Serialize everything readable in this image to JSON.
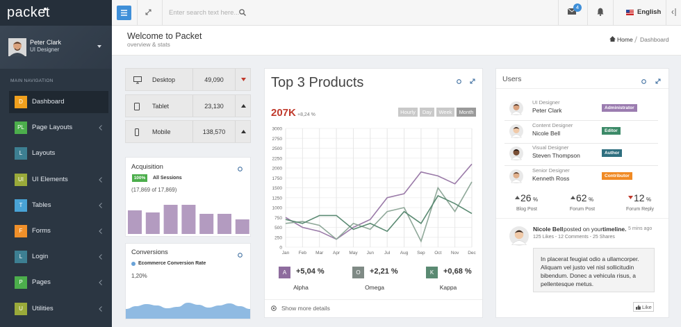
{
  "brand": {
    "logo": "packet"
  },
  "user": {
    "name": "Peter Clark",
    "role": "UI Designer"
  },
  "nav": {
    "heading": "MAIN NAVIGATION",
    "items": [
      {
        "badge": "D",
        "label": "Dashboard",
        "color": "#f0a01e",
        "has_submenu": false
      },
      {
        "badge": "PL",
        "label": "Page Layouts",
        "color": "#4cae4c",
        "has_submenu": true
      },
      {
        "badge": "L",
        "label": "Layouts",
        "color": "#3d7f92",
        "has_submenu": false
      },
      {
        "badge": "UI",
        "label": "UI Elements",
        "color": "#9aaa3a",
        "has_submenu": true
      },
      {
        "badge": "T",
        "label": "Tables",
        "color": "#49a3d6",
        "has_submenu": true
      },
      {
        "badge": "F",
        "label": "Forms",
        "color": "#f0902a",
        "has_submenu": true
      },
      {
        "badge": "L",
        "label": "Login",
        "color": "#3d7f92",
        "has_submenu": true
      },
      {
        "badge": "P",
        "label": "Pages",
        "color": "#4cae4c",
        "has_submenu": true
      },
      {
        "badge": "U",
        "label": "Utilities",
        "color": "#9aaa3a",
        "has_submenu": true
      }
    ]
  },
  "topbar": {
    "search_placeholder": "Enter search text here...",
    "mail_count": "4",
    "language": "English"
  },
  "page_header": {
    "title": "Welcome to Packet",
    "subtitle": "overview & stats",
    "breadcrumb": [
      "Home",
      "Dashboard"
    ]
  },
  "devices": [
    {
      "name": "Desktop",
      "value": "49,090",
      "trend": "down"
    },
    {
      "name": "Tablet",
      "value": "23,130",
      "trend": "up"
    },
    {
      "name": "Mobile",
      "value": "138,570",
      "trend": "up"
    }
  ],
  "acquisition": {
    "title": "Acquisition",
    "badge": "100%",
    "label": "All Sessions",
    "detail": "(17,869 of 17,869)"
  },
  "conversions": {
    "title": "Conversions",
    "value": "1,20%"
  },
  "products": {
    "title": "Top 3 Products",
    "total": "207K",
    "change": "+8,24 %",
    "periods": [
      "Hourly",
      "Day",
      "Week",
      "Month"
    ],
    "active_period": "Month",
    "summary": [
      {
        "letter": "A",
        "change": "+5,04 %",
        "name": "Alpha",
        "color": "#8e6c9e"
      },
      {
        "letter": "O",
        "change": "+2,21 %",
        "name": "Omega",
        "color": "#7f8a85"
      },
      {
        "letter": "K",
        "change": "+0,68 %",
        "name": "Kappa",
        "color": "#5a8a72"
      }
    ],
    "more": "Show more details"
  },
  "chart_data": [
    {
      "type": "line",
      "categories": [
        "Jan",
        "Feb",
        "Mar",
        "Apr",
        "May",
        "Jun",
        "Jul",
        "Aug",
        "Sep",
        "Oct",
        "Nov",
        "Dec"
      ],
      "series": [
        {
          "name": "Alpha",
          "color": "#9a7aa8",
          "values": [
            750,
            500,
            400,
            200,
            500,
            700,
            1250,
            1350,
            1900,
            1800,
            1600,
            2100
          ]
        },
        {
          "name": "Omega",
          "color": "#8fa899",
          "values": [
            600,
            650,
            550,
            200,
            600,
            450,
            900,
            1000,
            150,
            1500,
            900,
            1650
          ]
        },
        {
          "name": "Kappa",
          "color": "#5a8a72",
          "values": [
            700,
            600,
            800,
            800,
            450,
            600,
            400,
            900,
            600,
            1300,
            1100,
            850
          ]
        }
      ],
      "ylim": [
        0,
        3000
      ],
      "yticks": [
        0,
        250,
        500,
        750,
        1000,
        1250,
        1500,
        1750,
        2000,
        2250,
        2500,
        2750,
        3000
      ],
      "grid": true
    },
    {
      "type": "bar",
      "values": [
        34,
        31,
        42,
        42,
        29,
        29,
        21
      ],
      "color": "#b39bc0"
    },
    {
      "type": "area",
      "series": [
        {
          "name": "Ecommerce Conversion Rate",
          "color": "#6aa3d8",
          "values": [
            14,
            18,
            21,
            19,
            15,
            17,
            23,
            20,
            16,
            19,
            22,
            18,
            14
          ]
        }
      ]
    }
  ],
  "users": {
    "title": "Users",
    "items": [
      {
        "role": "UI Designer",
        "name": "Peter Clark",
        "badge": "Administrator",
        "badge_color": "#9b7cb0"
      },
      {
        "role": "Content Designer",
        "name": "Nicole Bell",
        "badge": "Editor",
        "badge_color": "#3c8a68"
      },
      {
        "role": "Visual Designer",
        "name": "Steven Thompson",
        "badge": "Author",
        "badge_color": "#2f6f7f"
      },
      {
        "role": "Senior Designer",
        "name": "Kenneth Ross",
        "badge": "Contributor",
        "badge_color": "#f08a24"
      }
    ],
    "stats": [
      {
        "value": "26",
        "unit": "%",
        "label": "Blog Post",
        "trend": "up"
      },
      {
        "value": "62",
        "unit": "%",
        "label": "Forum Post",
        "trend": "up"
      },
      {
        "value": "12",
        "unit": "%",
        "label": "Forum Reply",
        "trend": "down"
      }
    ],
    "feed": {
      "name": "Nicole Bell",
      "action": "posted on your",
      "target": "timeline.",
      "time": "5 mins ago",
      "meta": "125 Likes - 12 Comments - 25 Shares",
      "message": "In placerat feugiat odio a ullamcorper. Aliquam vel justo vel nisl sollicitudin bibendum. Donec a vehicula risus, a pellentesque metus.",
      "like": "Like"
    }
  }
}
